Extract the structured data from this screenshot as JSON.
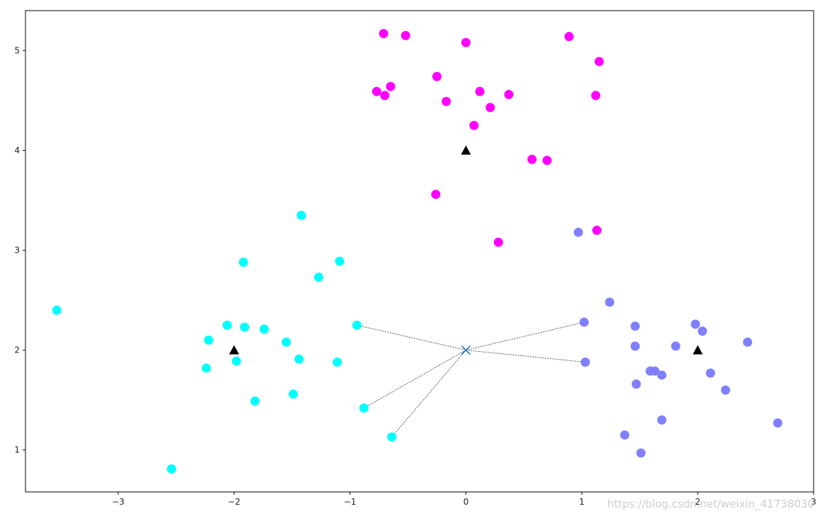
{
  "watermark": "https://blog.csdn.net/weixin_41738030",
  "chart_data": {
    "type": "scatter",
    "xlim": [
      -3.8,
      3
    ],
    "ylim": [
      0.58,
      5.4
    ],
    "xticks": [
      -3,
      -2,
      -1,
      0,
      1,
      2,
      3
    ],
    "yticks": [
      1,
      2,
      3,
      4,
      5
    ],
    "xtick_labels": [
      "−3",
      "−2",
      "−1",
      "0",
      "1",
      "2",
      "3"
    ],
    "ytick_labels": [
      "1",
      "2",
      "3",
      "4",
      "5"
    ],
    "grid": false,
    "colors": {
      "magenta": "#ff00ff",
      "cyan": "#00ffff",
      "blue": "#8080ff",
      "centroid": "#000000",
      "query": "#1f77b4",
      "line": "#333333"
    },
    "series": [
      {
        "color": "#ff00ff",
        "points": [
          [
            -0.71,
            5.17
          ],
          [
            -0.52,
            5.15
          ],
          [
            0.0,
            5.08
          ],
          [
            0.89,
            5.14
          ],
          [
            1.15,
            4.89
          ],
          [
            -0.25,
            4.74
          ],
          [
            -0.65,
            4.64
          ],
          [
            -0.77,
            4.59
          ],
          [
            -0.7,
            4.55
          ],
          [
            -0.17,
            4.49
          ],
          [
            0.12,
            4.59
          ],
          [
            0.21,
            4.43
          ],
          [
            0.37,
            4.56
          ],
          [
            1.12,
            4.55
          ],
          [
            0.07,
            4.25
          ],
          [
            0.57,
            3.91
          ],
          [
            0.7,
            3.9
          ],
          [
            -0.26,
            3.56
          ],
          [
            0.28,
            3.08
          ],
          [
            1.13,
            3.2
          ]
        ]
      },
      {
        "color": "#00ffff",
        "points": [
          [
            -3.53,
            2.4
          ],
          [
            -1.42,
            3.35
          ],
          [
            -1.92,
            2.88
          ],
          [
            -1.27,
            2.73
          ],
          [
            -1.09,
            2.89
          ],
          [
            -2.06,
            2.25
          ],
          [
            -1.91,
            2.23
          ],
          [
            -1.74,
            2.21
          ],
          [
            -2.22,
            2.1
          ],
          [
            -1.55,
            2.08
          ],
          [
            -0.94,
            2.25
          ],
          [
            -2.24,
            1.82
          ],
          [
            -1.98,
            1.89
          ],
          [
            -1.44,
            1.91
          ],
          [
            -1.11,
            1.88
          ],
          [
            -1.82,
            1.49
          ],
          [
            -1.49,
            1.56
          ],
          [
            -0.88,
            1.42
          ],
          [
            -0.64,
            1.13
          ],
          [
            -2.54,
            0.81
          ]
        ]
      },
      {
        "color": "#8080ff",
        "points": [
          [
            0.97,
            3.18
          ],
          [
            1.24,
            2.48
          ],
          [
            1.02,
            2.28
          ],
          [
            1.46,
            2.24
          ],
          [
            1.98,
            2.26
          ],
          [
            2.04,
            2.19
          ],
          [
            1.46,
            2.04
          ],
          [
            1.81,
            2.04
          ],
          [
            2.43,
            2.08
          ],
          [
            1.03,
            1.88
          ],
          [
            1.59,
            1.79
          ],
          [
            1.63,
            1.79
          ],
          [
            1.69,
            1.75
          ],
          [
            2.11,
            1.77
          ],
          [
            1.47,
            1.66
          ],
          [
            2.24,
            1.6
          ],
          [
            1.69,
            1.3
          ],
          [
            2.69,
            1.27
          ],
          [
            1.37,
            1.15
          ],
          [
            1.51,
            0.97
          ]
        ]
      }
    ],
    "centroids": [
      [
        0,
        4
      ],
      [
        -2,
        2
      ],
      [
        2,
        2
      ]
    ],
    "query_point": [
      0,
      2
    ],
    "nearest_neighbors": [
      [
        -0.94,
        2.25
      ],
      [
        -0.88,
        1.42
      ],
      [
        -0.64,
        1.13
      ],
      [
        1.02,
        2.28
      ],
      [
        1.03,
        1.88
      ]
    ]
  }
}
